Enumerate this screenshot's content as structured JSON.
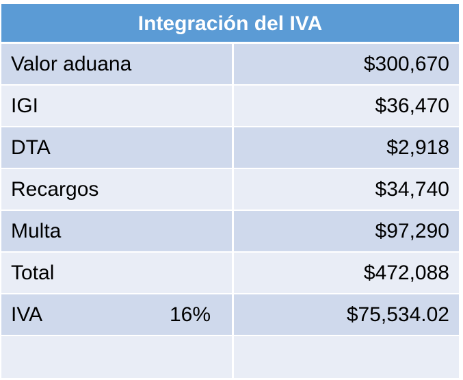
{
  "table": {
    "title": "Integración del IVA",
    "rows": [
      {
        "label": "Valor aduana",
        "rate": "",
        "value": "$300,670"
      },
      {
        "label": "IGI",
        "rate": "",
        "value": "$36,470"
      },
      {
        "label": "DTA",
        "rate": "",
        "value": "$2,918"
      },
      {
        "label": "Recargos",
        "rate": "",
        "value": "$34,740"
      },
      {
        "label": "Multa",
        "rate": "",
        "value": "$97,290"
      },
      {
        "label": "Total",
        "rate": "",
        "value": "$472,088"
      },
      {
        "label": "IVA",
        "rate": "16%",
        "value": "$75,534.02"
      },
      {
        "label": "",
        "rate": "",
        "value": ""
      }
    ]
  },
  "colors": {
    "header_bg": "#5b9bd5",
    "row_dark": "#cfd9ec",
    "row_light": "#e9edf6"
  }
}
